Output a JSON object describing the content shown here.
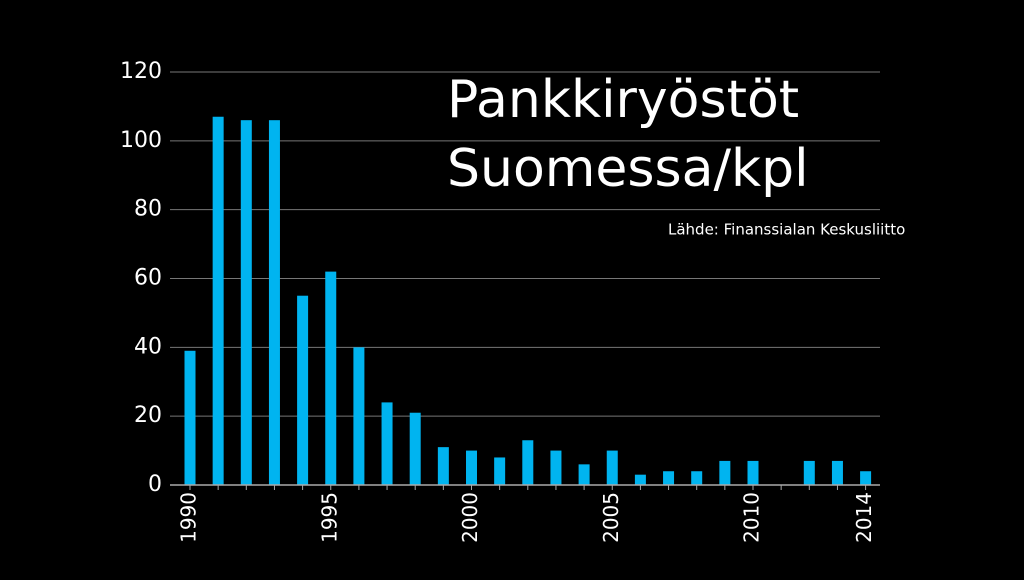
{
  "chart_data": {
    "type": "bar",
    "title": [
      "Pankkiryöstöt",
      "Suomessa/kpl"
    ],
    "source": "Lähde: Finanssialan Keskusliitto",
    "categories": [
      "1990",
      null,
      null,
      null,
      null,
      "1995",
      null,
      null,
      null,
      null,
      "2000",
      null,
      null,
      null,
      null,
      "2005",
      null,
      null,
      null,
      null,
      "2010",
      null,
      null,
      null,
      "2014"
    ],
    "values": [
      39,
      107,
      106,
      106,
      55,
      62,
      40,
      24,
      21,
      11,
      10,
      8,
      13,
      10,
      6,
      10,
      3,
      4,
      4,
      7,
      7,
      0,
      7,
      7,
      4
    ],
    "color": "#00b4f0",
    "ylim": [
      0,
      120
    ],
    "yticks": [
      0,
      20,
      40,
      60,
      80,
      100,
      120
    ],
    "grid": true
  }
}
